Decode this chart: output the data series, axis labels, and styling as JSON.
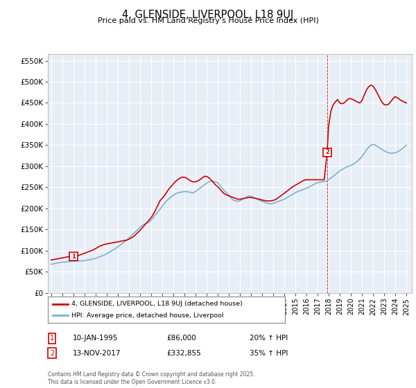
{
  "title": "4, GLENSIDE, LIVERPOOL, L18 9UJ",
  "subtitle": "Price paid vs. HM Land Registry's House Price Index (HPI)",
  "background_color": "#ffffff",
  "plot_bg_color": "#e8eef5",
  "grid_color": "#ffffff",
  "legend_label_red": "4, GLENSIDE, LIVERPOOL, L18 9UJ (detached house)",
  "legend_label_blue": "HPI: Average price, detached house, Liverpool",
  "annotation1_label": "1",
  "annotation1_date": "10-JAN-1995",
  "annotation1_price": "£86,000",
  "annotation1_hpi": "20% ↑ HPI",
  "annotation2_label": "2",
  "annotation2_date": "13-NOV-2017",
  "annotation2_price": "£332,855",
  "annotation2_hpi": "35% ↑ HPI",
  "footer": "Contains HM Land Registry data © Crown copyright and database right 2025.\nThis data is licensed under the Open Government Licence v3.0.",
  "ylim": [
    0,
    565000
  ],
  "yticks": [
    0,
    50000,
    100000,
    150000,
    200000,
    250000,
    300000,
    350000,
    400000,
    450000,
    500000,
    550000
  ],
  "ytick_labels": [
    "£0",
    "£50K",
    "£100K",
    "£150K",
    "£200K",
    "£250K",
    "£300K",
    "£350K",
    "£400K",
    "£450K",
    "£500K",
    "£550K"
  ],
  "red_color": "#cc0000",
  "blue_color": "#7ab0d4",
  "marker1_x": 1995.03,
  "marker1_y": 86000,
  "marker2_x": 2017.87,
  "marker2_y": 332855,
  "x_min": 1992.7,
  "x_max": 2025.5,
  "hpi_x": [
    1993.0,
    1993.1,
    1993.2,
    1993.3,
    1993.4,
    1993.5,
    1993.6,
    1993.7,
    1993.8,
    1993.9,
    1994.0,
    1994.1,
    1994.2,
    1994.3,
    1994.4,
    1994.5,
    1994.6,
    1994.7,
    1994.8,
    1994.9,
    1995.0,
    1995.1,
    1995.2,
    1995.3,
    1995.4,
    1995.5,
    1995.6,
    1995.7,
    1995.8,
    1995.9,
    1996.0,
    1996.2,
    1996.4,
    1996.6,
    1996.8,
    1997.0,
    1997.2,
    1997.4,
    1997.6,
    1997.8,
    1998.0,
    1998.2,
    1998.4,
    1998.6,
    1998.8,
    1999.0,
    1999.2,
    1999.4,
    1999.6,
    1999.8,
    2000.0,
    2000.2,
    2000.4,
    2000.6,
    2000.8,
    2001.0,
    2001.2,
    2001.4,
    2001.6,
    2001.8,
    2002.0,
    2002.2,
    2002.4,
    2002.6,
    2002.8,
    2003.0,
    2003.2,
    2003.4,
    2003.6,
    2003.8,
    2004.0,
    2004.2,
    2004.4,
    2004.6,
    2004.8,
    2005.0,
    2005.2,
    2005.4,
    2005.6,
    2005.8,
    2006.0,
    2006.2,
    2006.4,
    2006.6,
    2006.8,
    2007.0,
    2007.2,
    2007.4,
    2007.6,
    2007.8,
    2008.0,
    2008.2,
    2008.4,
    2008.6,
    2008.8,
    2009.0,
    2009.2,
    2009.4,
    2009.6,
    2009.8,
    2010.0,
    2010.2,
    2010.4,
    2010.6,
    2010.8,
    2011.0,
    2011.2,
    2011.4,
    2011.6,
    2011.8,
    2012.0,
    2012.2,
    2012.4,
    2012.6,
    2012.8,
    2013.0,
    2013.2,
    2013.4,
    2013.6,
    2013.8,
    2014.0,
    2014.2,
    2014.4,
    2014.6,
    2014.8,
    2015.0,
    2015.2,
    2015.4,
    2015.6,
    2015.8,
    2016.0,
    2016.2,
    2016.4,
    2016.6,
    2016.8,
    2017.0,
    2017.2,
    2017.4,
    2017.6,
    2017.8,
    2018.0,
    2018.2,
    2018.4,
    2018.6,
    2018.8,
    2019.0,
    2019.2,
    2019.4,
    2019.6,
    2019.8,
    2020.0,
    2020.2,
    2020.4,
    2020.6,
    2020.8,
    2021.0,
    2021.2,
    2021.4,
    2021.6,
    2021.8,
    2022.0,
    2022.2,
    2022.4,
    2022.6,
    2022.8,
    2023.0,
    2023.2,
    2023.4,
    2023.6,
    2023.8,
    2024.0,
    2024.2,
    2024.4,
    2024.6,
    2024.8,
    2025.0
  ],
  "hpi_y": [
    68000,
    68500,
    69000,
    69500,
    70000,
    70500,
    71000,
    71500,
    72000,
    72500,
    73000,
    73200,
    73400,
    73600,
    73800,
    74000,
    74200,
    74400,
    74600,
    74800,
    75000,
    75200,
    75400,
    75500,
    75600,
    75700,
    75800,
    75900,
    76000,
    76100,
    76500,
    77500,
    78500,
    79500,
    80500,
    82000,
    84000,
    86000,
    88000,
    90000,
    93000,
    96000,
    99000,
    102000,
    105000,
    109000,
    113000,
    117000,
    121000,
    125000,
    130000,
    135000,
    140000,
    145000,
    150000,
    155000,
    160000,
    163000,
    165000,
    167000,
    172000,
    178000,
    185000,
    192000,
    198000,
    205000,
    212000,
    218000,
    223000,
    227000,
    231000,
    235000,
    237000,
    238000,
    239000,
    240000,
    240000,
    239000,
    238000,
    237000,
    240000,
    244000,
    248000,
    252000,
    256000,
    260000,
    263000,
    265000,
    264000,
    263000,
    261000,
    255000,
    248000,
    242000,
    237000,
    232000,
    225000,
    220000,
    218000,
    217000,
    218000,
    221000,
    224000,
    227000,
    230000,
    229000,
    227000,
    224000,
    221000,
    219000,
    217000,
    215000,
    213000,
    212000,
    211000,
    212000,
    214000,
    216000,
    218000,
    220000,
    222000,
    225000,
    228000,
    231000,
    234000,
    237000,
    240000,
    242000,
    244000,
    246000,
    248000,
    250000,
    253000,
    256000,
    259000,
    261000,
    262000,
    263000,
    264000,
    265000,
    268000,
    272000,
    276000,
    280000,
    285000,
    289000,
    292000,
    295000,
    298000,
    300000,
    302000,
    305000,
    308000,
    312000,
    317000,
    323000,
    330000,
    338000,
    345000,
    350000,
    352000,
    350000,
    347000,
    343000,
    340000,
    337000,
    334000,
    332000,
    331000,
    331000,
    332000,
    334000,
    337000,
    341000,
    345000,
    350000
  ],
  "red_x": [
    1993.0,
    1993.1,
    1993.2,
    1993.3,
    1993.4,
    1993.5,
    1993.6,
    1993.7,
    1993.8,
    1993.9,
    1994.0,
    1994.1,
    1994.2,
    1994.3,
    1994.4,
    1994.5,
    1994.6,
    1994.7,
    1994.8,
    1994.9,
    1995.03,
    1995.1,
    1995.2,
    1995.3,
    1995.4,
    1995.5,
    1995.6,
    1995.7,
    1995.8,
    1995.9,
    1996.0,
    1996.2,
    1996.4,
    1996.6,
    1996.8,
    1997.0,
    1997.2,
    1997.4,
    1997.6,
    1997.8,
    1998.0,
    1998.2,
    1998.4,
    1998.6,
    1998.8,
    1999.0,
    1999.2,
    1999.4,
    1999.6,
    1999.8,
    2000.0,
    2000.2,
    2000.4,
    2000.6,
    2000.8,
    2001.0,
    2001.2,
    2001.4,
    2001.6,
    2001.8,
    2002.0,
    2002.2,
    2002.4,
    2002.6,
    2002.8,
    2003.0,
    2003.2,
    2003.4,
    2003.6,
    2003.8,
    2004.0,
    2004.2,
    2004.4,
    2004.6,
    2004.8,
    2005.0,
    2005.2,
    2005.4,
    2005.6,
    2005.8,
    2006.0,
    2006.2,
    2006.4,
    2006.6,
    2006.8,
    2007.0,
    2007.2,
    2007.4,
    2007.6,
    2007.8,
    2008.0,
    2008.2,
    2008.4,
    2008.6,
    2008.8,
    2009.0,
    2009.2,
    2009.4,
    2009.6,
    2009.8,
    2010.0,
    2010.2,
    2010.4,
    2010.6,
    2010.8,
    2011.0,
    2011.2,
    2011.4,
    2011.6,
    2011.8,
    2012.0,
    2012.2,
    2012.4,
    2012.6,
    2012.8,
    2013.0,
    2013.2,
    2013.4,
    2013.6,
    2013.8,
    2014.0,
    2014.2,
    2014.4,
    2014.6,
    2014.8,
    2015.0,
    2015.2,
    2015.4,
    2015.6,
    2015.8,
    2016.0,
    2016.2,
    2016.4,
    2016.6,
    2016.8,
    2017.0,
    2017.2,
    2017.4,
    2017.6,
    2017.87,
    2018.0,
    2018.2,
    2018.4,
    2018.6,
    2018.8,
    2019.0,
    2019.2,
    2019.4,
    2019.6,
    2019.8,
    2020.0,
    2020.2,
    2020.4,
    2020.6,
    2020.8,
    2021.0,
    2021.2,
    2021.4,
    2021.6,
    2021.8,
    2022.0,
    2022.2,
    2022.4,
    2022.6,
    2022.8,
    2023.0,
    2023.2,
    2023.4,
    2023.6,
    2023.8,
    2024.0,
    2024.2,
    2024.4,
    2024.6,
    2024.8,
    2025.0
  ],
  "red_y": [
    78000,
    78500,
    79000,
    79500,
    80000,
    80500,
    81000,
    81500,
    82000,
    82500,
    83000,
    83500,
    84000,
    84500,
    85000,
    85500,
    86000,
    86500,
    87000,
    87500,
    86000,
    86500,
    87000,
    87500,
    88000,
    89000,
    90000,
    91000,
    92000,
    93000,
    94000,
    96000,
    98000,
    100000,
    102000,
    105000,
    108000,
    111000,
    113000,
    115000,
    116000,
    117000,
    118000,
    119000,
    120000,
    121000,
    122000,
    123000,
    124000,
    125000,
    127000,
    130000,
    133000,
    138000,
    143000,
    148000,
    154000,
    160000,
    166000,
    172000,
    178000,
    186000,
    196000,
    207000,
    218000,
    224000,
    230000,
    238000,
    246000,
    252000,
    258000,
    264000,
    268000,
    272000,
    274000,
    274000,
    272000,
    268000,
    265000,
    263000,
    263000,
    265000,
    268000,
    272000,
    276000,
    276000,
    273000,
    268000,
    262000,
    256000,
    252000,
    246000,
    240000,
    235000,
    232000,
    230000,
    228000,
    226000,
    224000,
    222000,
    222000,
    223000,
    224000,
    225000,
    226000,
    226000,
    225000,
    224000,
    223000,
    222000,
    220000,
    219000,
    218000,
    218000,
    218000,
    219000,
    221000,
    224000,
    228000,
    232000,
    236000,
    240000,
    244000,
    248000,
    252000,
    255000,
    258000,
    261000,
    264000,
    267000,
    268000,
    268000,
    268000,
    268000,
    268000,
    268000,
    268000,
    268000,
    268000,
    332855,
    395000,
    430000,
    445000,
    452000,
    458000,
    450000,
    448000,
    450000,
    455000,
    460000,
    460000,
    458000,
    455000,
    452000,
    450000,
    455000,
    468000,
    480000,
    488000,
    492000,
    490000,
    482000,
    472000,
    462000,
    452000,
    446000,
    445000,
    447000,
    453000,
    460000,
    465000,
    462000,
    458000,
    455000,
    452000,
    450000
  ]
}
